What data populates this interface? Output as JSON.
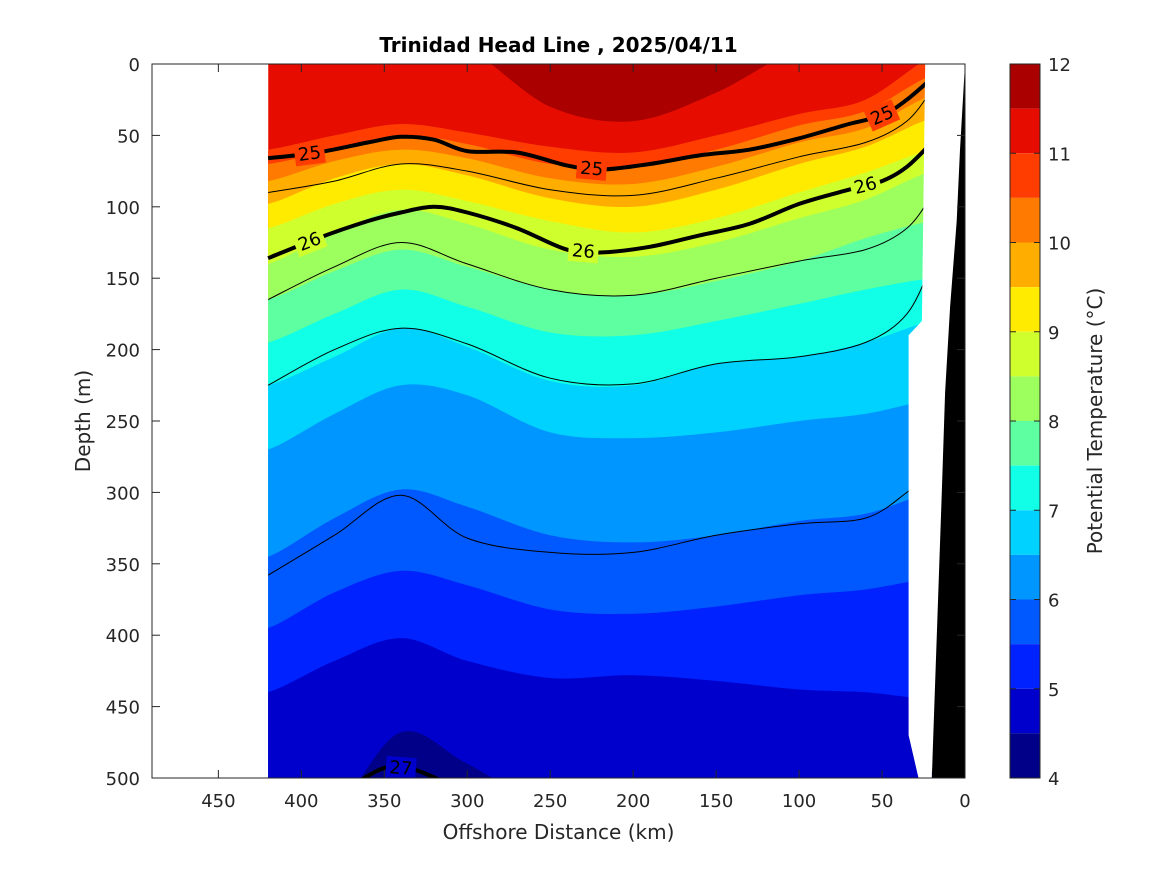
{
  "chart_data": {
    "type": "contour",
    "title": "Trinidad Head Line , 2025/04/11",
    "xlabel": "Offshore Distance (km)",
    "ylabel": "Depth (m)",
    "colorbar_label": "Potential Temperature (°C)",
    "xlim": [
      490,
      0
    ],
    "ylim": [
      0,
      500
    ],
    "x_reversed": true,
    "y_reversed": true,
    "x_ticks": [
      450,
      400,
      350,
      300,
      250,
      200,
      150,
      100,
      50,
      0
    ],
    "y_ticks": [
      0,
      50,
      100,
      150,
      200,
      250,
      300,
      350,
      400,
      450,
      500
    ],
    "colorbar_ticks": [
      4,
      5,
      6,
      7,
      8,
      9,
      10,
      11,
      12
    ],
    "data_x_extent": [
      420,
      20
    ],
    "temperature_bins": [
      {
        "min": 11.5,
        "max": 12.0,
        "color": "#aa0000"
      },
      {
        "min": 11.0,
        "max": 11.5,
        "color": "#e60d00"
      },
      {
        "min": 10.5,
        "max": 11.0,
        "color": "#ff3d00"
      },
      {
        "min": 10.0,
        "max": 10.5,
        "color": "#ff7a00"
      },
      {
        "min": 9.5,
        "max": 10.0,
        "color": "#ffae00"
      },
      {
        "min": 9.0,
        "max": 9.5,
        "color": "#ffeb00"
      },
      {
        "min": 8.5,
        "max": 9.0,
        "color": "#d0ff2e"
      },
      {
        "min": 8.0,
        "max": 8.5,
        "color": "#9cff5e"
      },
      {
        "min": 7.5,
        "max": 8.0,
        "color": "#5effa0"
      },
      {
        "min": 7.0,
        "max": 7.5,
        "color": "#10ffe6"
      },
      {
        "min": 6.5,
        "max": 7.0,
        "color": "#00d2ff"
      },
      {
        "min": 6.0,
        "max": 6.5,
        "color": "#0096ff"
      },
      {
        "min": 5.5,
        "max": 6.0,
        "color": "#0058ff"
      },
      {
        "min": 5.0,
        "max": 5.5,
        "color": "#0022ff"
      },
      {
        "min": 4.5,
        "max": 5.0,
        "color": "#0000cc"
      },
      {
        "min": 4.0,
        "max": 4.5,
        "color": "#000088"
      }
    ],
    "isotherm_depths": {
      "x": [
        420,
        380,
        340,
        300,
        250,
        200,
        150,
        100,
        60,
        20
      ],
      "t11_5": [
        -10,
        -10,
        -10,
        -10,
        30,
        40,
        20,
        -10,
        -10,
        -10
      ],
      "t11_0": [
        60,
        50,
        42,
        48,
        58,
        62,
        50,
        35,
        25,
        -5
      ],
      "t10_5": [
        70,
        60,
        50,
        56,
        70,
        72,
        60,
        43,
        33,
        8
      ],
      "t10_0": [
        82,
        68,
        60,
        66,
        80,
        84,
        72,
        55,
        45,
        22
      ],
      "t9_5": [
        98,
        80,
        70,
        78,
        94,
        100,
        88,
        70,
        58,
        38
      ],
      "t9_0": [
        115,
        98,
        88,
        96,
        110,
        118,
        108,
        90,
        76,
        60
      ],
      "t8_5": [
        140,
        118,
        102,
        112,
        130,
        135,
        125,
        108,
        95,
        75
      ],
      "t8_0": [
        165,
        145,
        130,
        142,
        158,
        162,
        152,
        138,
        122,
        110
      ],
      "t7_5": [
        195,
        175,
        158,
        170,
        188,
        190,
        180,
        168,
        158,
        150
      ],
      "t7_0": [
        225,
        205,
        185,
        198,
        222,
        225,
        210,
        205,
        195,
        180
      ],
      "t6_5": [
        270,
        245,
        225,
        232,
        258,
        262,
        258,
        250,
        245,
        235
      ],
      "t6_0": [
        345,
        318,
        298,
        310,
        330,
        335,
        330,
        320,
        315,
        300
      ],
      "t5_5": [
        395,
        370,
        355,
        365,
        382,
        385,
        380,
        372,
        368,
        360
      ],
      "t5_0": [
        440,
        418,
        402,
        418,
        430,
        428,
        432,
        438,
        440,
        445
      ],
      "t4_5": [
        520,
        520,
        468,
        490,
        520,
        520,
        520,
        520,
        520,
        520
      ]
    },
    "density_contours": [
      {
        "sigma": 25,
        "label": "25",
        "x": [
          420,
          390,
          360,
          340,
          320,
          300,
          270,
          240,
          220,
          190,
          160,
          130,
          100,
          70,
          50,
          35,
          20
        ],
        "depth": [
          66,
          62,
          55,
          51,
          53,
          61,
          62,
          71,
          74,
          70,
          64,
          60,
          52,
          42,
          36,
          25,
          10
        ]
      },
      {
        "sigma": 26,
        "label": "26",
        "x": [
          420,
          390,
          360,
          340,
          320,
          300,
          270,
          240,
          220,
          190,
          160,
          130,
          100,
          70,
          50,
          35,
          20
        ],
        "depth": [
          136,
          122,
          110,
          104,
          100,
          104,
          115,
          130,
          132,
          128,
          120,
          112,
          98,
          88,
          82,
          72,
          55
        ]
      },
      {
        "sigma": 27,
        "label": "27",
        "x": [
          365,
          350,
          335,
          315
        ],
        "depth": [
          502,
          493,
          493,
          502
        ]
      }
    ],
    "thin_contours": [
      {
        "x": [
          420,
          380,
          340,
          300,
          250,
          200,
          150,
          100,
          60,
          35,
          20
        ],
        "depth": [
          90,
          82,
          70,
          75,
          88,
          92,
          80,
          65,
          55,
          40,
          18
        ]
      },
      {
        "x": [
          420,
          380,
          340,
          300,
          250,
          200,
          150,
          100,
          60,
          35,
          20
        ],
        "depth": [
          165,
          142,
          125,
          140,
          158,
          162,
          150,
          138,
          130,
          115,
          92
        ]
      },
      {
        "x": [
          420,
          380,
          340,
          300,
          250,
          200,
          150,
          100,
          60,
          35,
          20
        ],
        "depth": [
          225,
          200,
          185,
          196,
          220,
          224,
          210,
          205,
          195,
          175,
          140
        ]
      },
      {
        "x": [
          420,
          380,
          340,
          300,
          250,
          200,
          150,
          100,
          60,
          35,
          20
        ],
        "depth": [
          358,
          330,
          302,
          332,
          342,
          342,
          330,
          322,
          318,
          300,
          285
        ]
      }
    ],
    "bathymetry": {
      "x": [
        0,
        3,
        5,
        9,
        12,
        14,
        17,
        20
      ],
      "depth": [
        0,
        60,
        110,
        170,
        230,
        300,
        400,
        500
      ]
    }
  }
}
